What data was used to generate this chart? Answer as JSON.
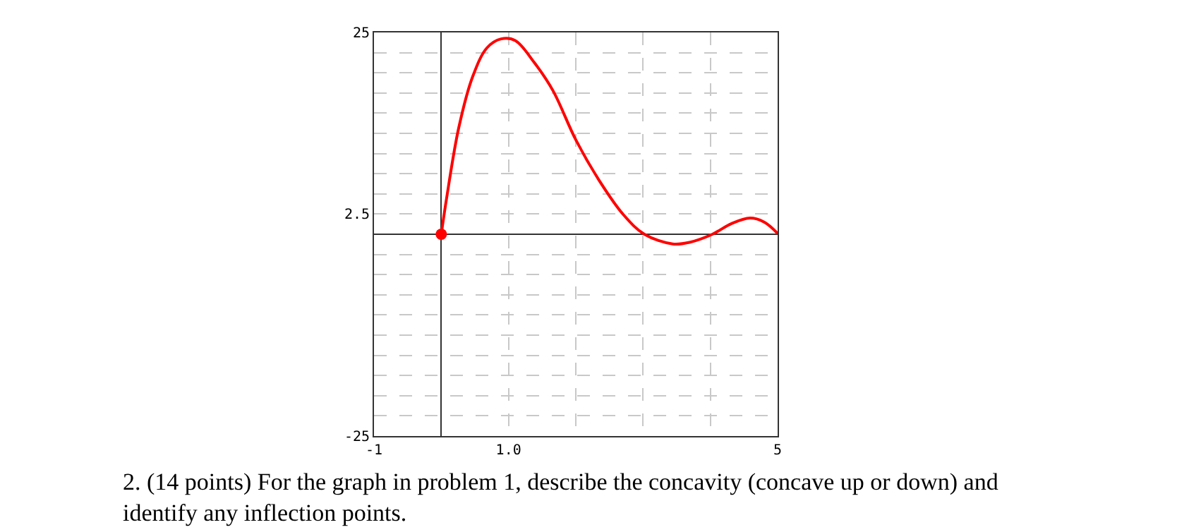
{
  "chart_data": {
    "type": "line",
    "xlim": [
      -1,
      5
    ],
    "ylim": [
      -25,
      25
    ],
    "xticks": [
      -1,
      {
        "value": 0,
        "label": null
      },
      {
        "value": 1,
        "label": "1.0"
      },
      {
        "value": 2,
        "label": null
      },
      {
        "value": 3,
        "label": null
      },
      {
        "value": 4,
        "label": null
      },
      5
    ],
    "yticks": [
      -25,
      {
        "value": -22.5,
        "label": null
      },
      {
        "value": -20,
        "label": null
      },
      {
        "value": -17.5,
        "label": null
      },
      {
        "value": -15,
        "label": null
      },
      {
        "value": -12.5,
        "label": null
      },
      {
        "value": -10,
        "label": null
      },
      {
        "value": -7.5,
        "label": null
      },
      {
        "value": -5,
        "label": null
      },
      {
        "value": -2.5,
        "label": null
      },
      {
        "value": 0,
        "label": null
      },
      2.5,
      {
        "value": 5,
        "label": null
      },
      {
        "value": 7.5,
        "label": null
      },
      {
        "value": 10,
        "label": null
      },
      {
        "value": 12.5,
        "label": null
      },
      {
        "value": 15,
        "label": null
      },
      {
        "value": 17.5,
        "label": null
      },
      {
        "value": 20,
        "label": null
      },
      {
        "value": 22.5,
        "label": null
      },
      25
    ],
    "grid": true,
    "series": [
      {
        "color": "#ff0000",
        "x": [
          0,
          0.08,
          0.26,
          0.47,
          0.68,
          0.89,
          1.1,
          1.38,
          1.66,
          2.0,
          2.36,
          2.71,
          3.02,
          3.44,
          3.69,
          4.03,
          4.31,
          4.59,
          4.8,
          5
        ],
        "values": [
          0,
          4.5,
          13.2,
          19.6,
          23.1,
          24.2,
          24.0,
          21.3,
          17.8,
          11.7,
          6.5,
          2.4,
          0,
          -1.2,
          -1.0,
          0,
          1.3,
          2.0,
          1.5,
          0.1
        ]
      },
      {
        "type": "scatter",
        "color": "#ff0000",
        "marker": "circle",
        "x": [
          0
        ],
        "values": [
          0
        ]
      }
    ],
    "annotations": [
      "2. (14 points) For the graph in problem 1, describe the concavity (concave up or down) and\nidentify any inflection points."
    ]
  }
}
